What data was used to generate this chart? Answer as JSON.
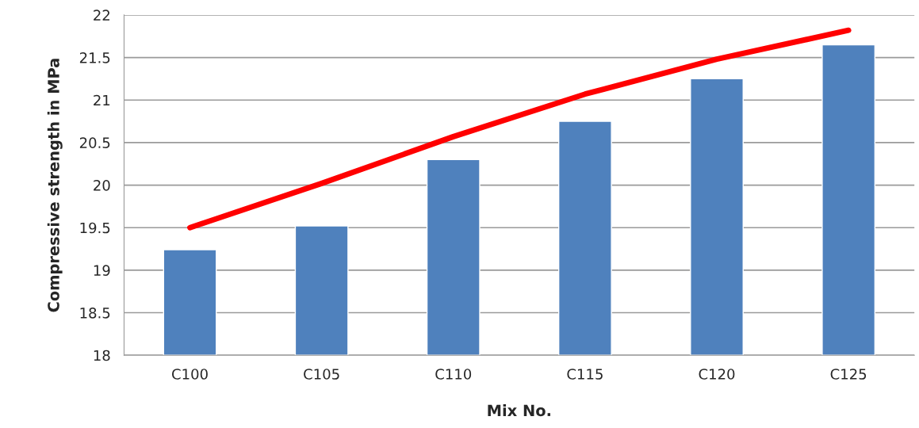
{
  "chart_data": {
    "type": "bar",
    "xlabel": "Mix No.",
    "ylabel": "Compressive strength in MPa",
    "categories": [
      "C100",
      "C105",
      "C110",
      "C115",
      "C120",
      "C125"
    ],
    "series": [
      {
        "color": "#4f81bd",
        "values": [
          19.24,
          19.52,
          20.3,
          20.75,
          21.25,
          21.65
        ]
      },
      {
        "type": "line",
        "color": "#ff0000",
        "values": [
          19.5,
          20.02,
          20.57,
          21.07,
          21.48,
          21.82
        ]
      }
    ],
    "ylim": [
      18,
      22
    ],
    "yticks": [
      18,
      18.5,
      19,
      19.5,
      20,
      20.5,
      21,
      21.5,
      22
    ],
    "grid": "y"
  }
}
